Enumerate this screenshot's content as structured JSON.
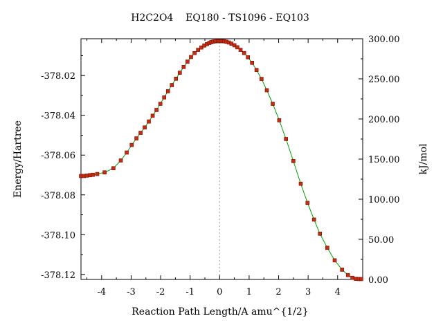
{
  "chart_data": {
    "type": "line",
    "title": "H2C2O4    EQ180 - TS1096 - EQ103",
    "xlabel": "Reaction Path Length/A amu^{1/2}",
    "ylabel": "Energy/Hartree",
    "y2label": "kJ/mol",
    "xlim": [
      -4.7,
      4.85
    ],
    "ylim": [
      -378.1225,
      -378.0015
    ],
    "y2lim": [
      0,
      300
    ],
    "y2_ticks": [
      "0.00",
      "50.00",
      "100.00",
      "150.00",
      "200.00",
      "250.00",
      "300.00"
    ],
    "x_ticks": [
      -4,
      -3,
      -2,
      -1,
      0,
      1,
      2,
      3,
      4
    ],
    "y_ticks": [
      "-378.02",
      "-378.04",
      "-378.06",
      "-378.08",
      "-378.10",
      "-378.12"
    ],
    "ts_marker_x": 0,
    "grid": false,
    "colors": {
      "line": "#00a000",
      "marker": "#c03010",
      "marker_edge": "#800000",
      "ts_line": "#a0a0a0"
    },
    "series": [
      {
        "x": [
          -4.7,
          -4.6,
          -4.5,
          -4.4,
          -4.3,
          -4.15,
          -3.9,
          -3.6,
          -3.35,
          -3.15,
          -2.98,
          -2.82,
          -2.68,
          -2.54,
          -2.4,
          -2.27,
          -2.14,
          -2.01,
          -1.88,
          -1.75,
          -1.62,
          -1.48,
          -1.35,
          -1.22,
          -1.09,
          -0.97,
          -0.85,
          -0.73,
          -0.62,
          -0.52,
          -0.43,
          -0.35,
          -0.28,
          -0.21,
          -0.15,
          -0.1,
          -0.05,
          0.0,
          0.05,
          0.1,
          0.16,
          0.23,
          0.31,
          0.4,
          0.5,
          0.6,
          0.71,
          0.83,
          0.96,
          1.1,
          1.25,
          1.42,
          1.6,
          1.8,
          2.02,
          2.25,
          2.5,
          2.75,
          2.98,
          3.2,
          3.4,
          3.65,
          3.9,
          4.15,
          4.35,
          4.5,
          4.62,
          4.72,
          4.8
        ],
        "y": [
          -378.0705,
          -378.0705,
          -378.0703,
          -378.0701,
          -378.0699,
          -378.0695,
          -378.0687,
          -378.0666,
          -378.0627,
          -378.0587,
          -378.0549,
          -378.0516,
          -378.0488,
          -378.0461,
          -378.0431,
          -378.0402,
          -378.0373,
          -378.0342,
          -378.031,
          -378.0279,
          -378.0248,
          -378.0216,
          -378.0186,
          -378.0157,
          -378.013,
          -378.0107,
          -378.0087,
          -378.0071,
          -378.0059,
          -378.0049,
          -378.0042,
          -378.0036,
          -378.0032,
          -378.0029,
          -378.0028,
          -378.0027,
          -378.0027,
          -378.0027,
          -378.0027,
          -378.0027,
          -378.0028,
          -378.003,
          -378.0034,
          -378.004,
          -378.0048,
          -378.0058,
          -378.0071,
          -378.0087,
          -378.0108,
          -378.0136,
          -378.0172,
          -378.0217,
          -378.0274,
          -378.0342,
          -378.0425,
          -378.0519,
          -378.063,
          -378.0744,
          -378.084,
          -378.0924,
          -378.0995,
          -378.1066,
          -378.1129,
          -378.1176,
          -378.1203,
          -378.1217,
          -378.1222,
          -378.1223,
          -378.1223
        ]
      }
    ]
  }
}
